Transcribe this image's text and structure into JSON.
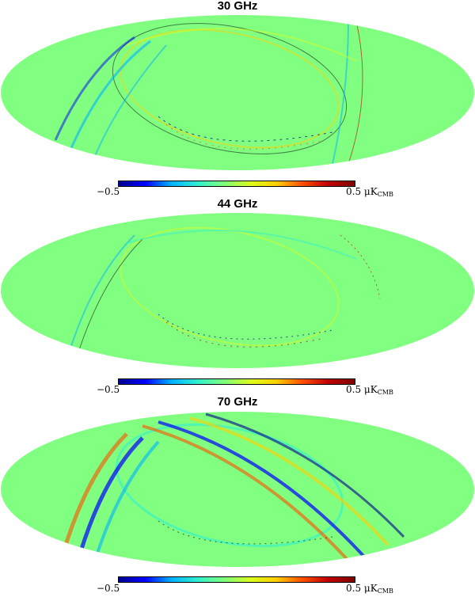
{
  "colormap": [
    "#000090",
    "#0000ff",
    "#00b0ff",
    "#30f0d0",
    "#7dff7d",
    "#d8ff20",
    "#ffd000",
    "#ff5000",
    "#c00000",
    "#800000"
  ],
  "background_color": "#80ff80",
  "panels": [
    {
      "title": "30 GHz",
      "colorbar": {
        "min_label": "−0.5",
        "max_value": "0.5",
        "unit_main": "μK",
        "unit_sub": "CMB"
      }
    },
    {
      "title": "44 GHz",
      "colorbar": {
        "min_label": "−0.5",
        "max_value": "0.5",
        "unit_main": "μK",
        "unit_sub": "CMB"
      }
    },
    {
      "title": "70 GHz",
      "colorbar": {
        "min_label": "−0.5",
        "max_value": "0.5",
        "unit_main": "μK",
        "unit_sub": "CMB"
      }
    }
  ]
}
